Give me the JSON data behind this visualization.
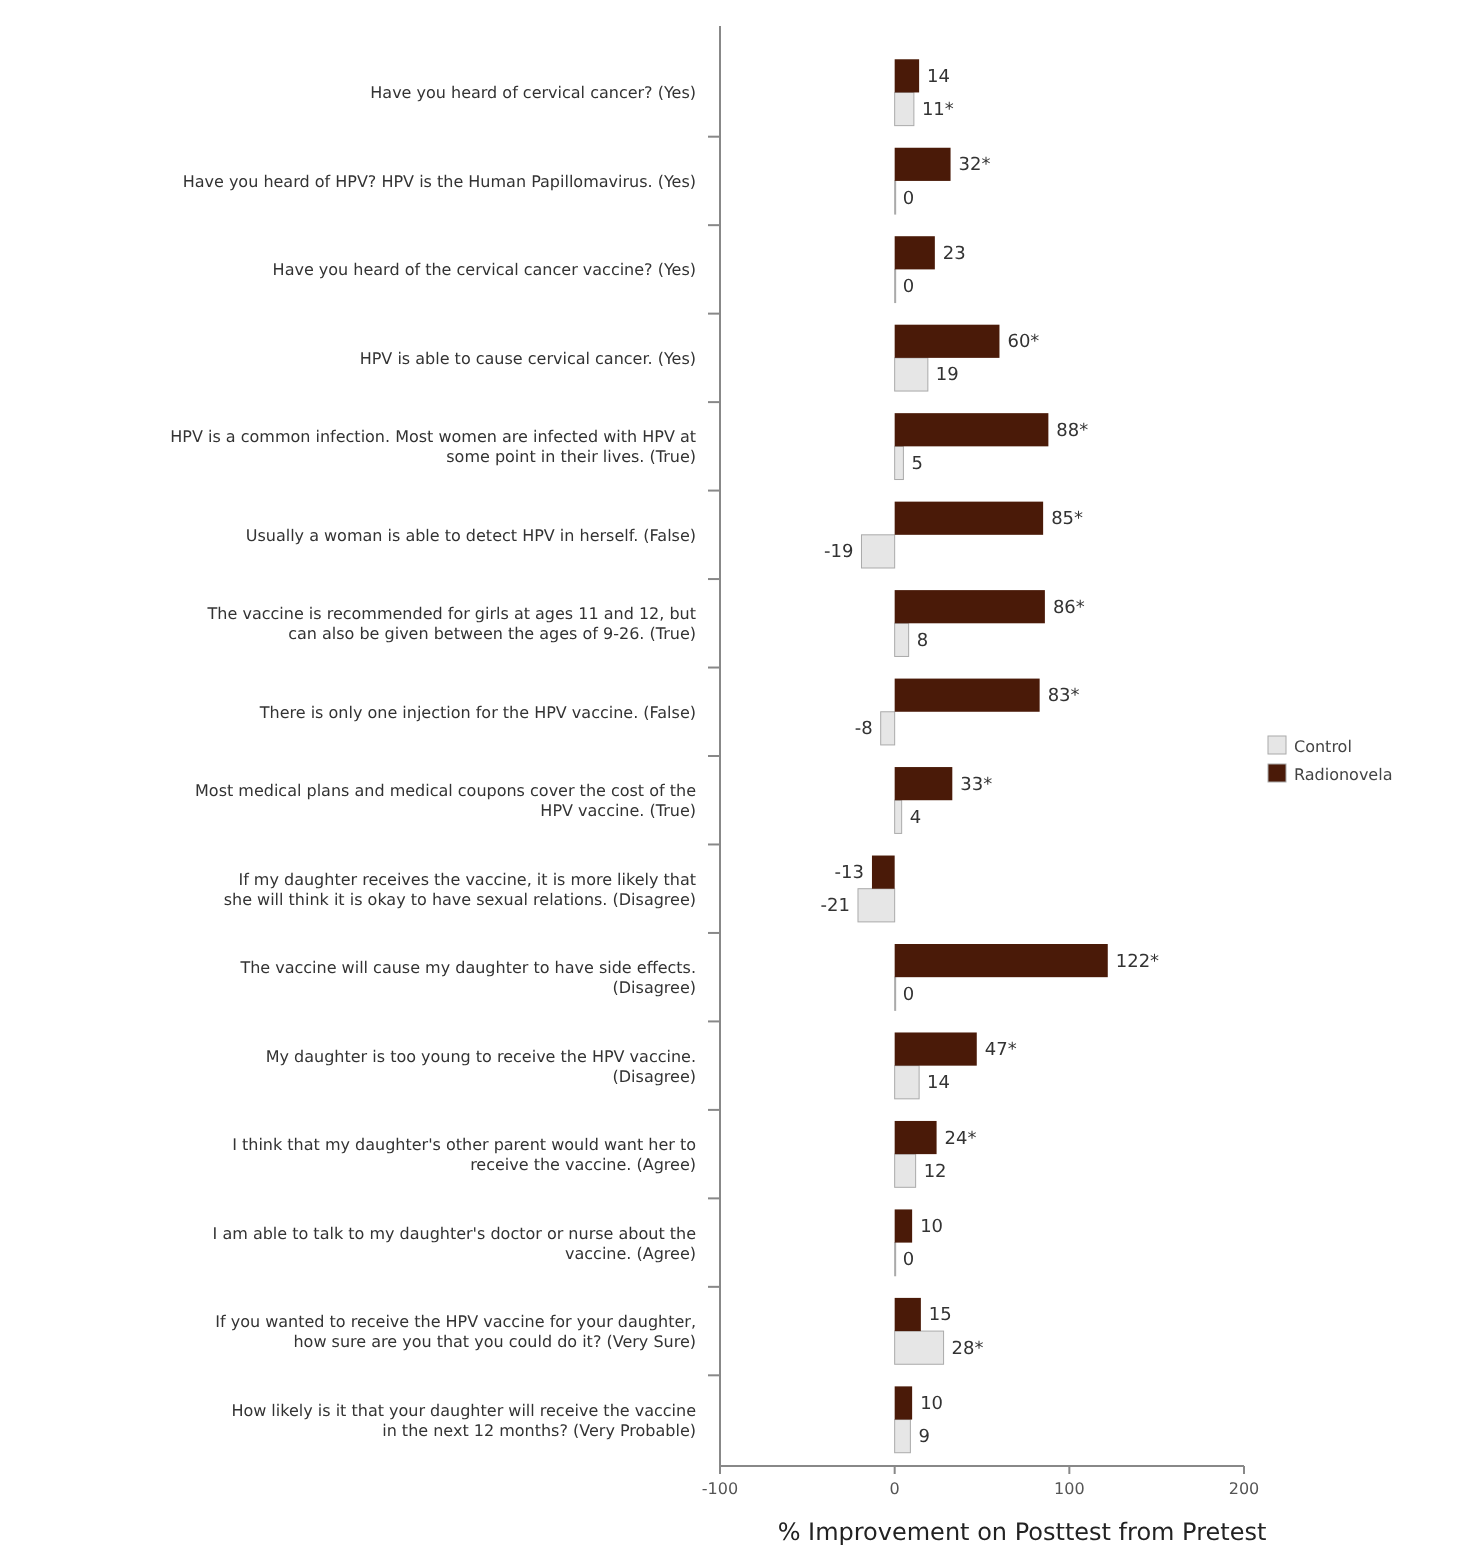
{
  "chart_data": {
    "type": "bar",
    "orientation": "horizontal",
    "xlabel": "% Improvement on Posttest from Pretest",
    "categories": [
      "Have you heard of cervical cancer? (Yes)",
      "Have you heard of HPV? HPV is the Human Papillomavirus. (Yes)",
      "Have you heard of the cervical cancer vaccine? (Yes)",
      "HPV is able to cause cervical cancer. (Yes)",
      "HPV is a common infection. Most women are infected with HPV at some point in their lives. (True)",
      "Usually a woman is able to detect HPV in herself. (False)",
      "The vaccine is recommended for girls at ages 11 and 12, but can also be given between the ages of 9-26. (True)",
      "There is only one injection for the HPV vaccine. (False)",
      "Most medical plans and medical coupons cover the cost of the HPV vaccine. (True)",
      "If my daughter receives the vaccine, it is more likely that she will think it is okay to have sexual relations. (Disagree)",
      "The vaccine will cause my daughter to have side effects. (Disagree)",
      "My daughter is too young to receive the HPV vaccine. (Disagree)",
      "I think that my daughter's other parent would want her to receive the vaccine. (Agree)",
      "I am able to talk to my daughter's doctor or nurse about the vaccine. (Agree)",
      "If you wanted to receive the HPV vaccine for your daughter, how sure are you that you could do it? (Very Sure)",
      "How likely is it that your daughter will receive the vaccine in the next 12 months? (Very Probable)"
    ],
    "series": [
      {
        "name": "Control",
        "color": "#e6e6e6",
        "values": [
          11,
          0,
          0,
          19,
          5,
          -19,
          8,
          -8,
          4,
          -21,
          0,
          14,
          12,
          0,
          28,
          9
        ],
        "value_labels": [
          "11*",
          "0",
          "0",
          "19",
          "5",
          "-19",
          "8",
          "-8",
          "4",
          "-21",
          "0",
          "14",
          "12",
          "0",
          "28*",
          "9"
        ]
      },
      {
        "name": "Radionovela",
        "color": "#4a1a08",
        "values": [
          14,
          32,
          23,
          60,
          88,
          85,
          86,
          83,
          33,
          -13,
          122,
          47,
          24,
          10,
          15,
          10
        ],
        "value_labels": [
          "14",
          "32*",
          "23",
          "60*",
          "88*",
          "85*",
          "86*",
          "83*",
          "33*",
          "-13",
          "122*",
          "47*",
          "24*",
          "10",
          "15",
          "10"
        ]
      }
    ],
    "xlim": [
      -100,
      200
    ],
    "xticks": [
      -100,
      0,
      100,
      200
    ],
    "legend": "right"
  }
}
